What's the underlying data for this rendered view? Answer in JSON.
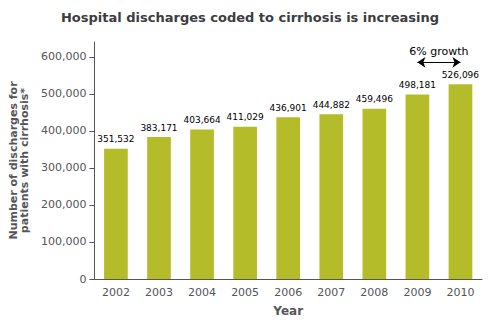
{
  "chart_data": {
    "type": "bar",
    "title": "Hospital discharges coded to cirrhosis is increasing",
    "xlabel": "Year",
    "ylabel": "Number of discharges for\npatients with cirrhosis*",
    "categories": [
      2002,
      2003,
      2004,
      2005,
      2006,
      2007,
      2008,
      2009,
      2010
    ],
    "values": [
      351532,
      383171,
      403664,
      411029,
      436901,
      444882,
      459496,
      498181,
      526096
    ],
    "value_labels": [
      "351,532",
      "383,171",
      "403,664",
      "411,029",
      "436,901",
      "444,882",
      "459,496",
      "498,181",
      "526,096"
    ],
    "data_labels": true,
    "color": "#b5bc2a",
    "ylim": [
      0,
      640000
    ],
    "yticks": [
      0,
      {
        "value": 100000,
        "label": "100,000"
      },
      {
        "value": 200000,
        "label": "200,000"
      },
      {
        "value": 300000,
        "label": "300,000"
      },
      {
        "value": 400000,
        "label": "400,000"
      },
      {
        "value": 500000,
        "label": "500,000"
      },
      {
        "value": 600000,
        "label": "600,000"
      }
    ],
    "grid": false,
    "annotations": [
      {
        "text": "6% growth",
        "from": 2009,
        "to": 2010,
        "y": 585000
      }
    ]
  }
}
